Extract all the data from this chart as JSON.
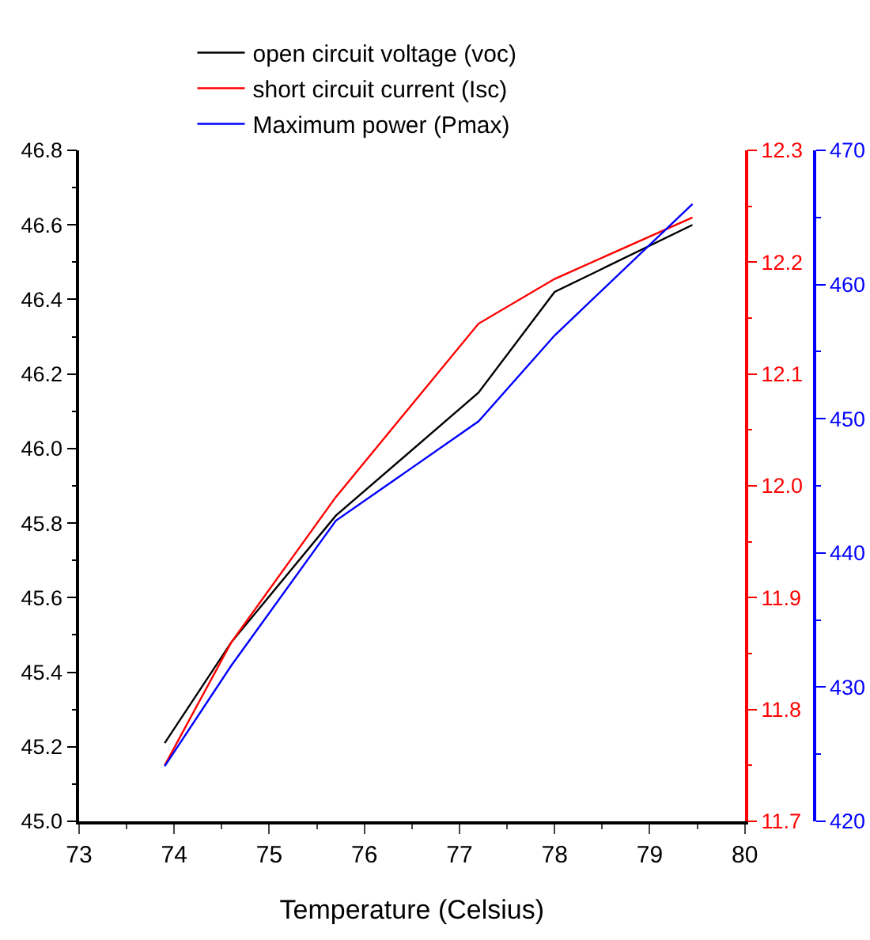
{
  "chart_data": {
    "type": "line",
    "xlabel": "Temperature (Celsius)",
    "x": [
      73.9,
      74.6,
      75.7,
      77.2,
      78.0,
      79.45
    ],
    "series": [
      {
        "name": "open circuit voltage (voc)",
        "color": "#000000",
        "values": [
          45.21,
          45.48,
          45.82,
          46.15,
          46.42,
          46.6
        ]
      },
      {
        "name": "short circuit current (Isc)",
        "color": "#ff0000",
        "axis": "y2",
        "values": [
          11.75,
          11.86,
          11.99,
          12.145,
          12.185,
          12.24
        ]
      },
      {
        "name": "Maximum power (Pmax)",
        "color": "#0000ff",
        "axis": "y3",
        "values": [
          424.1,
          431.6,
          442.4,
          449.8,
          456.2,
          466.0
        ]
      }
    ],
    "xlim": [
      73,
      80
    ],
    "xticks": [
      73,
      74,
      75,
      76,
      77,
      78,
      79,
      80
    ],
    "ylim": [
      45.0,
      46.8
    ],
    "yticks": [
      {
        "value": 45,
        "label": "45.0"
      },
      45.2,
      45.4,
      45.6,
      45.8,
      {
        "value": 46,
        "label": "46.0"
      },
      46.2,
      46.4,
      46.6,
      46.8
    ],
    "y2lim": [
      11.7,
      12.3
    ],
    "y2ticks": [
      11.7,
      11.8,
      11.9,
      {
        "value": 12,
        "label": "12.0"
      },
      12.1,
      12.2,
      12.3
    ],
    "y3lim": [
      420,
      470
    ],
    "y3ticks": [
      420,
      430,
      440,
      450,
      460,
      470
    ],
    "grid": false,
    "legend": "top",
    "marker": "none",
    "line_style": "solid"
  }
}
